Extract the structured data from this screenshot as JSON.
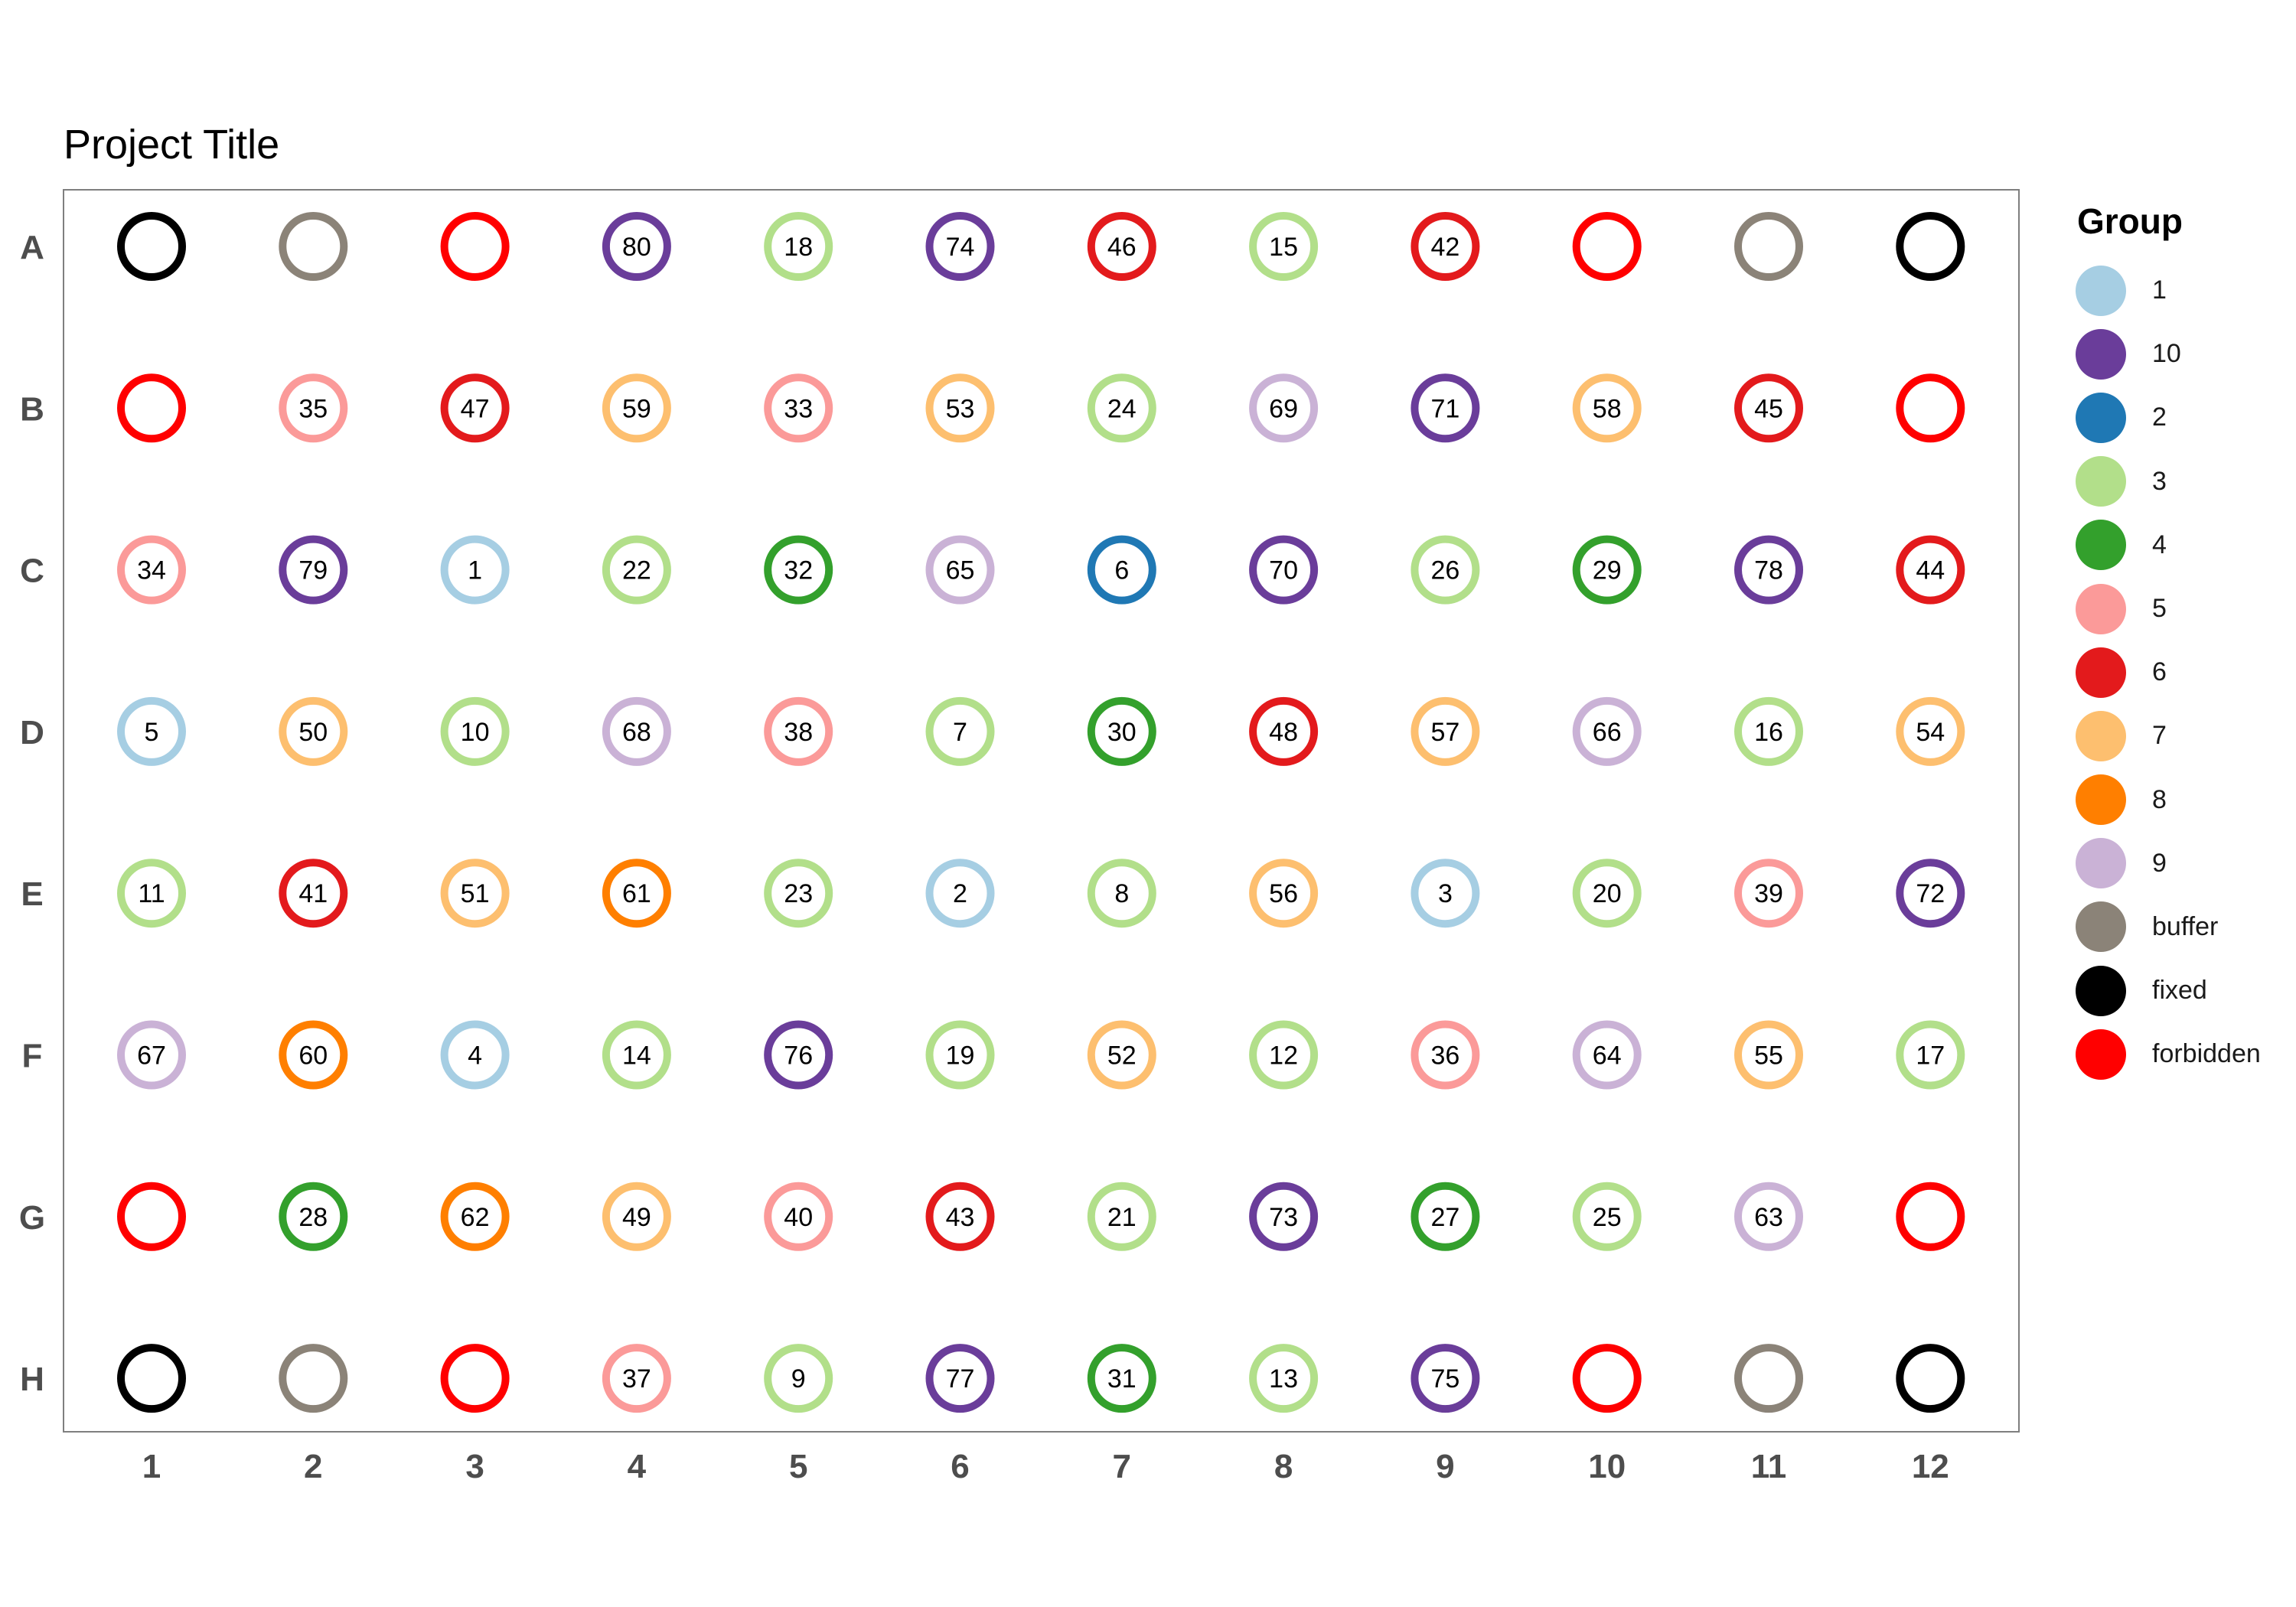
{
  "chart_data": {
    "type": "scatter",
    "title": "Project Title",
    "rows": [
      "A",
      "B",
      "C",
      "D",
      "E",
      "F",
      "G",
      "H"
    ],
    "columns": [
      "1",
      "2",
      "3",
      "4",
      "5",
      "6",
      "7",
      "8",
      "9",
      "10",
      "11",
      "12"
    ],
    "grid": false,
    "legend": {
      "title": "Group",
      "placement": "right",
      "entries": [
        {
          "label": "1",
          "color": "#a6cee3"
        },
        {
          "label": "10",
          "color": "#6a3d9a"
        },
        {
          "label": "2",
          "color": "#1f78b4"
        },
        {
          "label": "3",
          "color": "#b2df8a"
        },
        {
          "label": "4",
          "color": "#33a02c"
        },
        {
          "label": "5",
          "color": "#fb9a99"
        },
        {
          "label": "6",
          "color": "#e31a1c"
        },
        {
          "label": "7",
          "color": "#fdbf6f"
        },
        {
          "label": "8",
          "color": "#ff7f00"
        },
        {
          "label": "9",
          "color": "#cab2d6"
        },
        {
          "label": "buffer",
          "color": "#8b8378"
        },
        {
          "label": "fixed",
          "color": "#000000"
        },
        {
          "label": "forbidden",
          "color": "#ff0000"
        }
      ]
    },
    "wells": [
      [
        {
          "g": "fixed",
          "id": ""
        },
        {
          "g": "buffer",
          "id": ""
        },
        {
          "g": "forbidden",
          "id": ""
        },
        {
          "g": "10",
          "id": "80"
        },
        {
          "g": "3",
          "id": "18"
        },
        {
          "g": "10",
          "id": "74"
        },
        {
          "g": "6",
          "id": "46"
        },
        {
          "g": "3",
          "id": "15"
        },
        {
          "g": "6",
          "id": "42"
        },
        {
          "g": "forbidden",
          "id": ""
        },
        {
          "g": "buffer",
          "id": ""
        },
        {
          "g": "fixed",
          "id": ""
        }
      ],
      [
        {
          "g": "forbidden",
          "id": ""
        },
        {
          "g": "5",
          "id": "35"
        },
        {
          "g": "6",
          "id": "47"
        },
        {
          "g": "7",
          "id": "59"
        },
        {
          "g": "5",
          "id": "33"
        },
        {
          "g": "7",
          "id": "53"
        },
        {
          "g": "3",
          "id": "24"
        },
        {
          "g": "9",
          "id": "69"
        },
        {
          "g": "10",
          "id": "71"
        },
        {
          "g": "7",
          "id": "58"
        },
        {
          "g": "6",
          "id": "45"
        },
        {
          "g": "forbidden",
          "id": ""
        }
      ],
      [
        {
          "g": "5",
          "id": "34"
        },
        {
          "g": "10",
          "id": "79"
        },
        {
          "g": "1",
          "id": "1"
        },
        {
          "g": "3",
          "id": "22"
        },
        {
          "g": "4",
          "id": "32"
        },
        {
          "g": "9",
          "id": "65"
        },
        {
          "g": "2",
          "id": "6"
        },
        {
          "g": "10",
          "id": "70"
        },
        {
          "g": "3",
          "id": "26"
        },
        {
          "g": "4",
          "id": "29"
        },
        {
          "g": "10",
          "id": "78"
        },
        {
          "g": "6",
          "id": "44"
        }
      ],
      [
        {
          "g": "1",
          "id": "5"
        },
        {
          "g": "7",
          "id": "50"
        },
        {
          "g": "3",
          "id": "10"
        },
        {
          "g": "9",
          "id": "68"
        },
        {
          "g": "5",
          "id": "38"
        },
        {
          "g": "3",
          "id": "7"
        },
        {
          "g": "4",
          "id": "30"
        },
        {
          "g": "6",
          "id": "48"
        },
        {
          "g": "7",
          "id": "57"
        },
        {
          "g": "9",
          "id": "66"
        },
        {
          "g": "3",
          "id": "16"
        },
        {
          "g": "7",
          "id": "54"
        }
      ],
      [
        {
          "g": "3",
          "id": "11"
        },
        {
          "g": "6",
          "id": "41"
        },
        {
          "g": "7",
          "id": "51"
        },
        {
          "g": "8",
          "id": "61"
        },
        {
          "g": "3",
          "id": "23"
        },
        {
          "g": "1",
          "id": "2"
        },
        {
          "g": "3",
          "id": "8"
        },
        {
          "g": "7",
          "id": "56"
        },
        {
          "g": "1",
          "id": "3"
        },
        {
          "g": "3",
          "id": "20"
        },
        {
          "g": "5",
          "id": "39"
        },
        {
          "g": "10",
          "id": "72"
        }
      ],
      [
        {
          "g": "9",
          "id": "67"
        },
        {
          "g": "8",
          "id": "60"
        },
        {
          "g": "1",
          "id": "4"
        },
        {
          "g": "3",
          "id": "14"
        },
        {
          "g": "10",
          "id": "76"
        },
        {
          "g": "3",
          "id": "19"
        },
        {
          "g": "7",
          "id": "52"
        },
        {
          "g": "3",
          "id": "12"
        },
        {
          "g": "5",
          "id": "36"
        },
        {
          "g": "9",
          "id": "64"
        },
        {
          "g": "7",
          "id": "55"
        },
        {
          "g": "3",
          "id": "17"
        }
      ],
      [
        {
          "g": "forbidden",
          "id": ""
        },
        {
          "g": "4",
          "id": "28"
        },
        {
          "g": "8",
          "id": "62"
        },
        {
          "g": "7",
          "id": "49"
        },
        {
          "g": "5",
          "id": "40"
        },
        {
          "g": "6",
          "id": "43"
        },
        {
          "g": "3",
          "id": "21"
        },
        {
          "g": "10",
          "id": "73"
        },
        {
          "g": "4",
          "id": "27"
        },
        {
          "g": "3",
          "id": "25"
        },
        {
          "g": "9",
          "id": "63"
        },
        {
          "g": "forbidden",
          "id": ""
        }
      ],
      [
        {
          "g": "fixed",
          "id": ""
        },
        {
          "g": "buffer",
          "id": ""
        },
        {
          "g": "forbidden",
          "id": ""
        },
        {
          "g": "5",
          "id": "37"
        },
        {
          "g": "3",
          "id": "9"
        },
        {
          "g": "10",
          "id": "77"
        },
        {
          "g": "4",
          "id": "31"
        },
        {
          "g": "3",
          "id": "13"
        },
        {
          "g": "10",
          "id": "75"
        },
        {
          "g": "forbidden",
          "id": ""
        },
        {
          "g": "buffer",
          "id": ""
        },
        {
          "g": "fixed",
          "id": ""
        }
      ]
    ]
  }
}
